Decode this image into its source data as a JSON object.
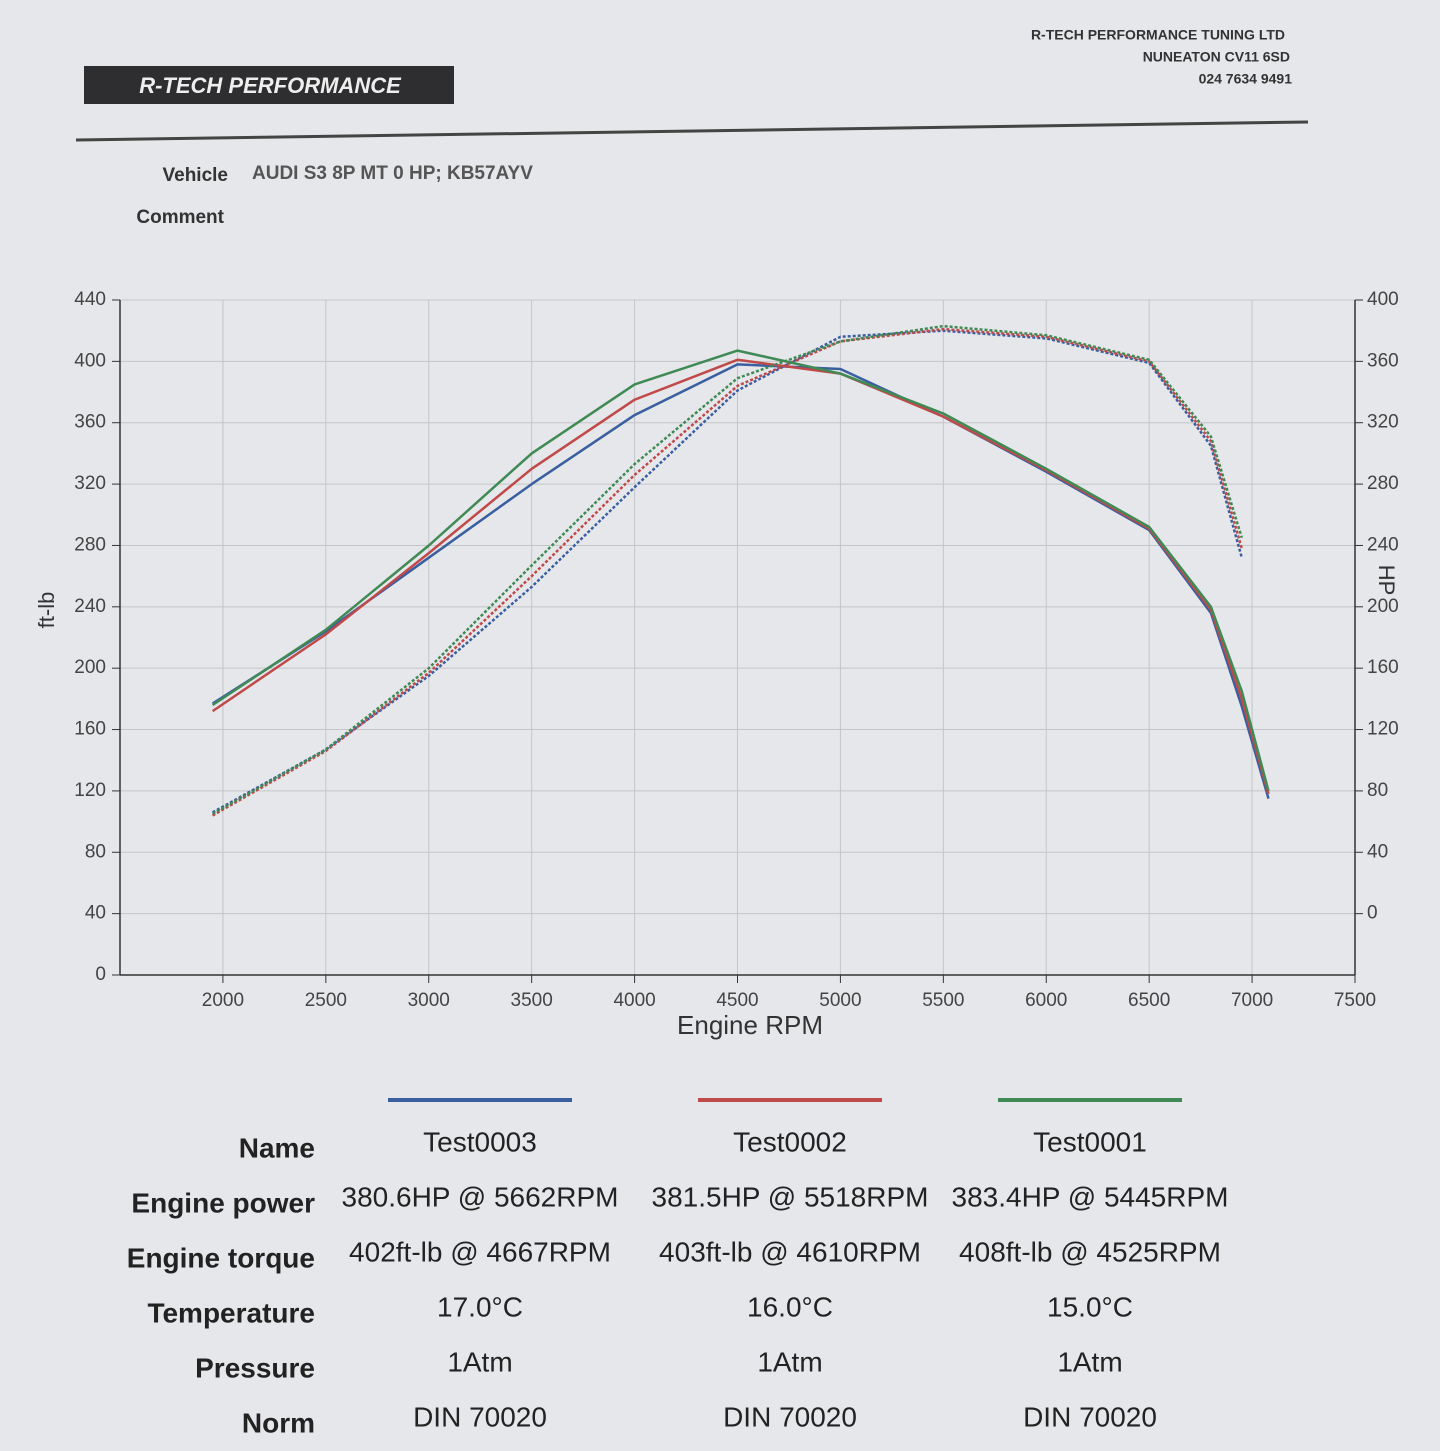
{
  "header": {
    "logo": "R-TECH PERFORMANCE",
    "company": "R-TECH PERFORMANCE TUNING LTD",
    "address": "NUNEATON CV11 6SD",
    "phone": "024 7634 9491"
  },
  "vehicle": {
    "label": "Vehicle",
    "value": "AUDI S3 8P MT 0 HP; KB57AYV",
    "comment_label": "Comment"
  },
  "chart_data": {
    "type": "line",
    "xlabel": "Engine RPM",
    "ylabel": "ft-lb",
    "y2label": "HP",
    "x": [
      1950,
      2500,
      3000,
      3500,
      4000,
      4500,
      5000,
      5500,
      6000,
      6500,
      6800,
      6950,
      7080
    ],
    "xlim": [
      1500,
      7500
    ],
    "xticks": [
      2000,
      2500,
      3000,
      3500,
      4000,
      4500,
      5000,
      5500,
      6000,
      6500,
      7000,
      7500
    ],
    "ylim": [
      0,
      440
    ],
    "yticks": [
      0,
      40,
      80,
      120,
      160,
      200,
      240,
      280,
      320,
      360,
      400,
      440
    ],
    "y2lim": [
      -40,
      400
    ],
    "y2ticks": [
      0,
      40,
      80,
      120,
      160,
      200,
      240,
      280,
      320,
      360,
      400
    ],
    "grid": true,
    "series": [
      {
        "name": "Test0003",
        "color": "#3a5fa0",
        "torque": [
          177,
          224,
          272,
          320,
          365,
          398,
          395,
          364,
          328,
          290,
          236,
          175,
          115
        ],
        "power": [
          66,
          107,
          155,
          213,
          278,
          341,
          376,
          380,
          375,
          359,
          305,
          232,
          null
        ]
      },
      {
        "name": "Test0002",
        "color": "#c0494a",
        "torque": [
          172,
          222,
          275,
          330,
          375,
          401,
          392,
          364,
          329,
          291,
          238,
          180,
          118
        ],
        "power": [
          64,
          106,
          157,
          220,
          286,
          344,
          373,
          381,
          376,
          360,
          308,
          238,
          null
        ]
      },
      {
        "name": "Test0001",
        "color": "#3f8a55",
        "torque": [
          176,
          225,
          280,
          340,
          385,
          407,
          392,
          366,
          330,
          292,
          240,
          185,
          120
        ],
        "power": [
          65,
          107,
          160,
          227,
          293,
          349,
          373,
          383,
          377,
          361,
          311,
          245,
          null
        ]
      }
    ]
  },
  "table": {
    "row_labels": [
      "Name",
      "Engine power",
      "Engine torque",
      "Temperature",
      "Pressure",
      "Norm"
    ],
    "rows": [
      [
        "380.6HP @  5662RPM",
        "381.5HP @  5518RPM",
        "383.4HP @  5445RPM"
      ],
      [
        "402ft-lb @ 4667RPM",
        "403ft-lb @ 4610RPM",
        "408ft-lb @ 4525RPM"
      ],
      [
        "17.0°C",
        "16.0°C",
        "15.0°C"
      ],
      [
        "1Atm",
        "1Atm",
        "1Atm"
      ],
      [
        "DIN 70020",
        "DIN 70020",
        "DIN 70020"
      ]
    ]
  }
}
